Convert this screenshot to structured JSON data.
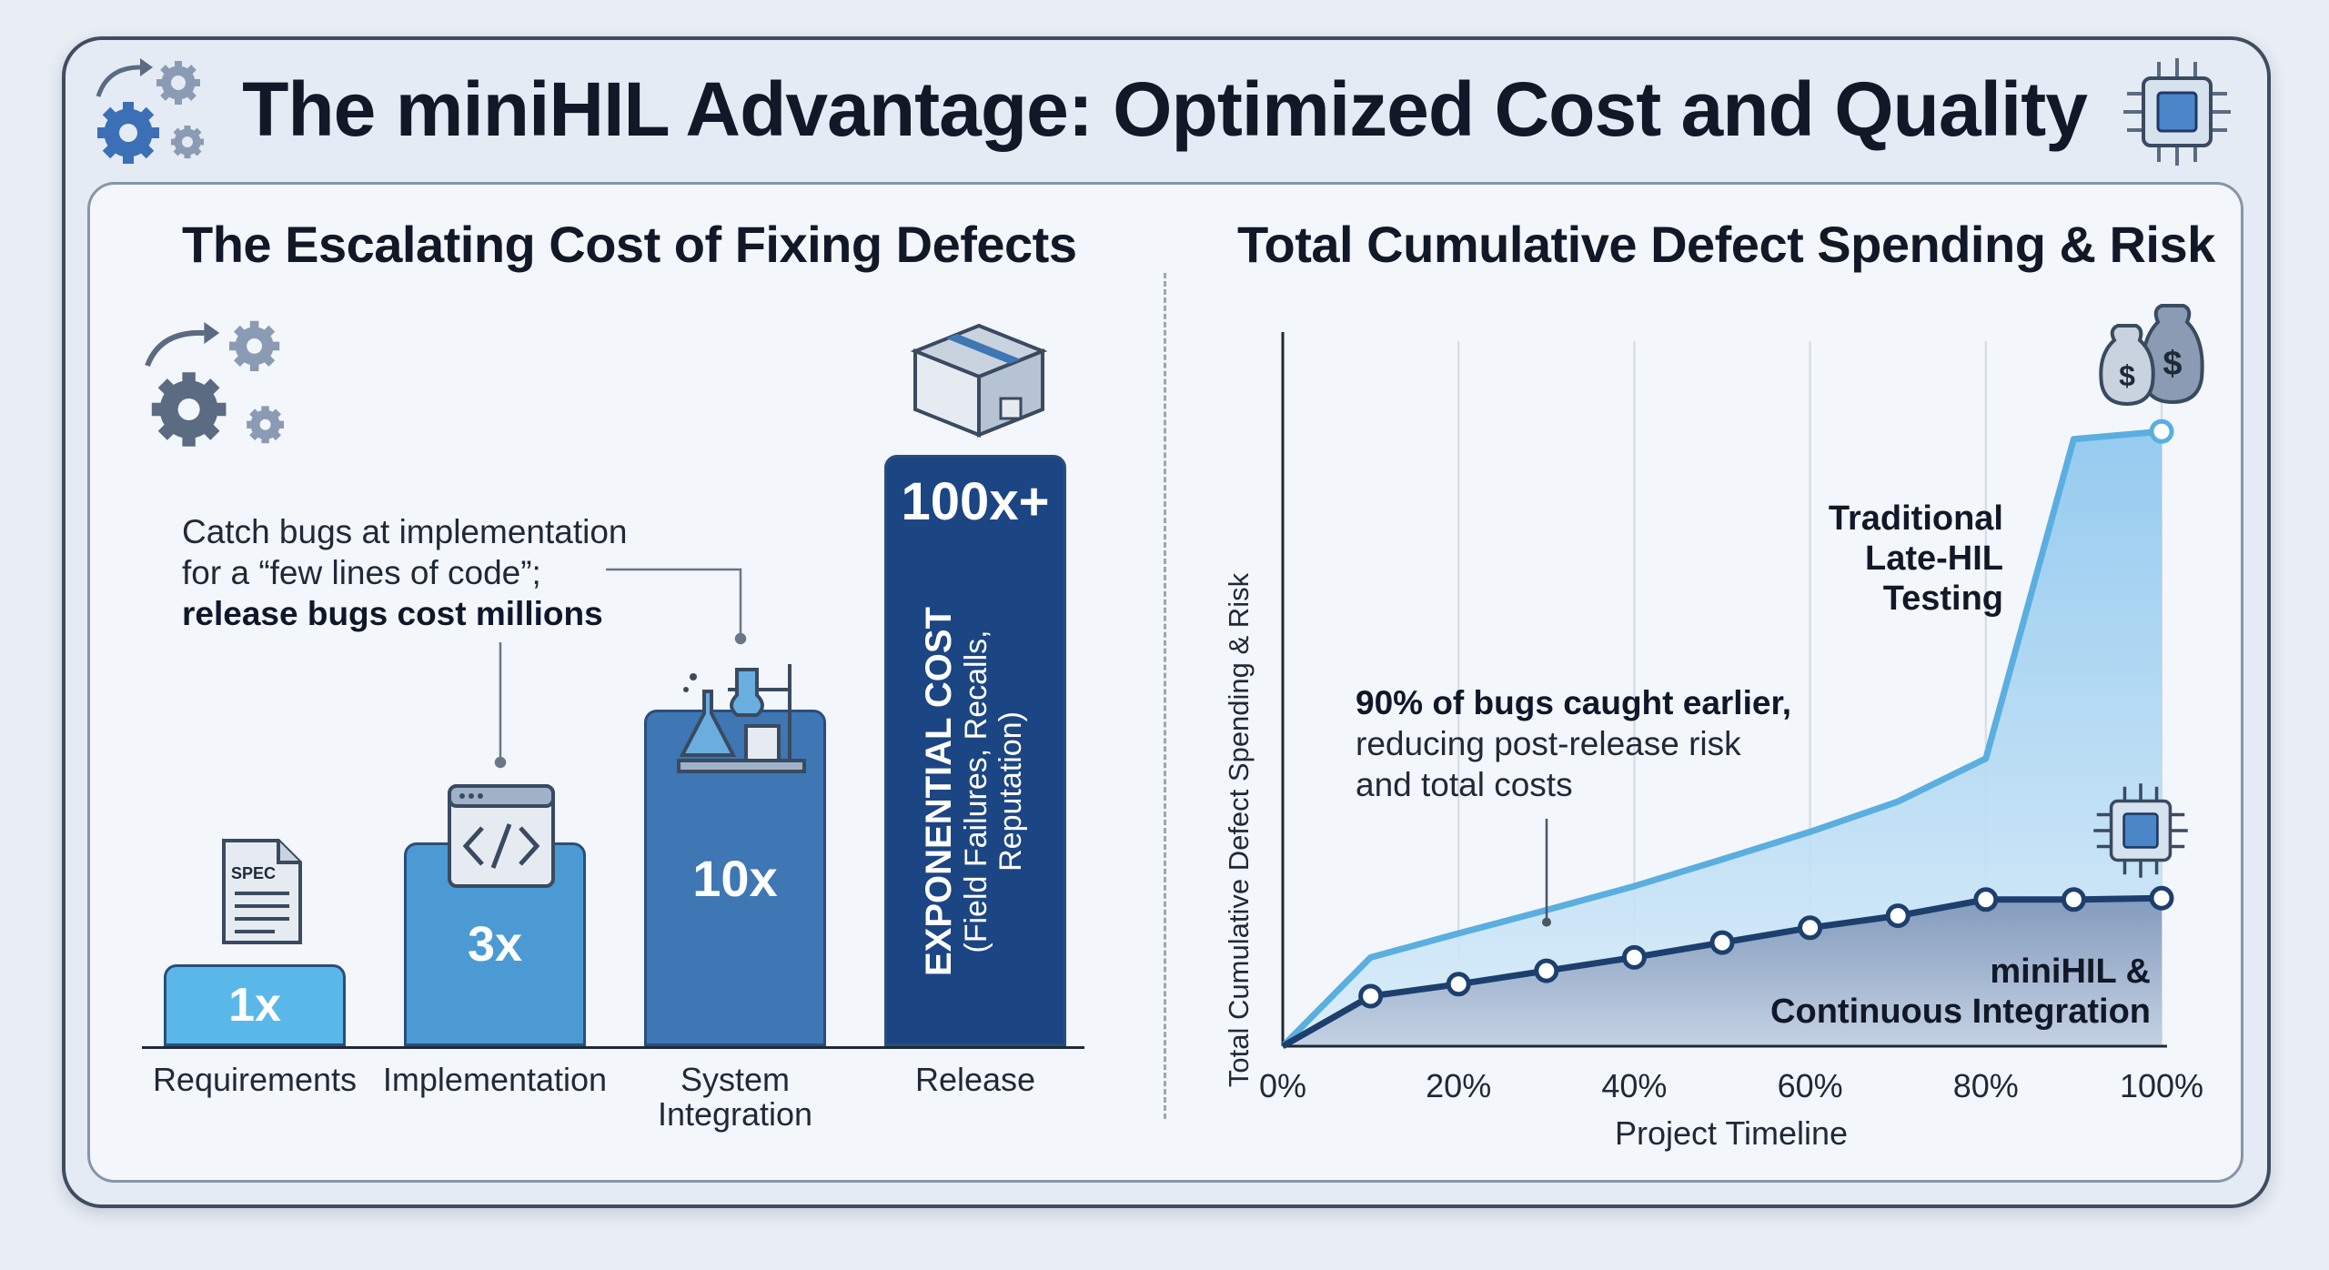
{
  "title": "The miniHIL Advantage: Optimized Cost and Quality",
  "left_panel": {
    "title": "The Escalating Cost of Fixing Defects",
    "callout_line1": "Catch bugs at implementation",
    "callout_line2": "for a “few lines of code”;",
    "callout_bold": "release bugs cost millions",
    "spec_label": "SPEC",
    "release_note_title": "EXPONENTIAL COST",
    "release_note_line1": "(Field Failures, Recalls,",
    "release_note_line2": "Reputation)"
  },
  "right_panel": {
    "title": "Total Cumulative Defect Spending & Risk",
    "callout_bold": "90% of bugs caught earlier,",
    "callout_line2": "reducing post-release risk",
    "callout_line3": "and total costs",
    "traditional_label": [
      "Traditional",
      "Late-HIL",
      "Testing"
    ],
    "minihil_label": [
      "miniHIL &",
      "Continuous Integration"
    ]
  },
  "colors": {
    "bar_1": "#5ab8e8",
    "bar_2": "#4b9ad4",
    "bar_3": "#3f76b4",
    "bar_4": "#1c4583",
    "traditional_line": "#5aaee0",
    "minihil_line": "#1d3f6e"
  },
  "chart_data": [
    {
      "type": "bar",
      "title": "The Escalating Cost of Fixing Defects",
      "categories": [
        "Requirements",
        "Implementation",
        "System Integration",
        "Release"
      ],
      "category_lines": [
        [
          "Requirements"
        ],
        [
          "Implementation"
        ],
        [
          "System",
          "Integration"
        ],
        [
          "Release"
        ]
      ],
      "values": [
        1,
        3,
        10,
        100
      ],
      "value_labels": [
        "1x",
        "3x",
        "10x",
        "100x+"
      ],
      "icons": [
        "spec-document-icon",
        "code-window-icon",
        "lab-flask-icon",
        "package-box-icon"
      ]
    },
    {
      "type": "area",
      "title": "Total Cumulative Defect Spending & Risk",
      "xlabel": "Project Timeline",
      "ylabel": "Total Cumulative Defect Spending & Risk",
      "x_ticks": [
        "0%",
        "20%",
        "40%",
        "60%",
        "80%",
        "100%"
      ],
      "xlim": [
        0,
        100
      ],
      "ylim": [
        0,
        100
      ],
      "grid": "vertical",
      "series": [
        {
          "name": "Traditional Late-HIL Testing",
          "x": [
            0,
            10,
            20,
            30,
            40,
            50,
            60,
            70,
            80,
            90,
            100
          ],
          "y": [
            0,
            12.6,
            16,
            19.3,
            22.7,
            26.5,
            30.4,
            34.7,
            40.8,
            86.1,
            87.2
          ]
        },
        {
          "name": "miniHIL & Continuous Integration",
          "x": [
            0,
            10,
            20,
            30,
            40,
            50,
            60,
            70,
            80,
            90,
            100
          ],
          "y": [
            0,
            7.1,
            8.8,
            10.7,
            12.6,
            14.7,
            16.8,
            18.5,
            20.8,
            20.8,
            21.0
          ]
        }
      ]
    }
  ]
}
